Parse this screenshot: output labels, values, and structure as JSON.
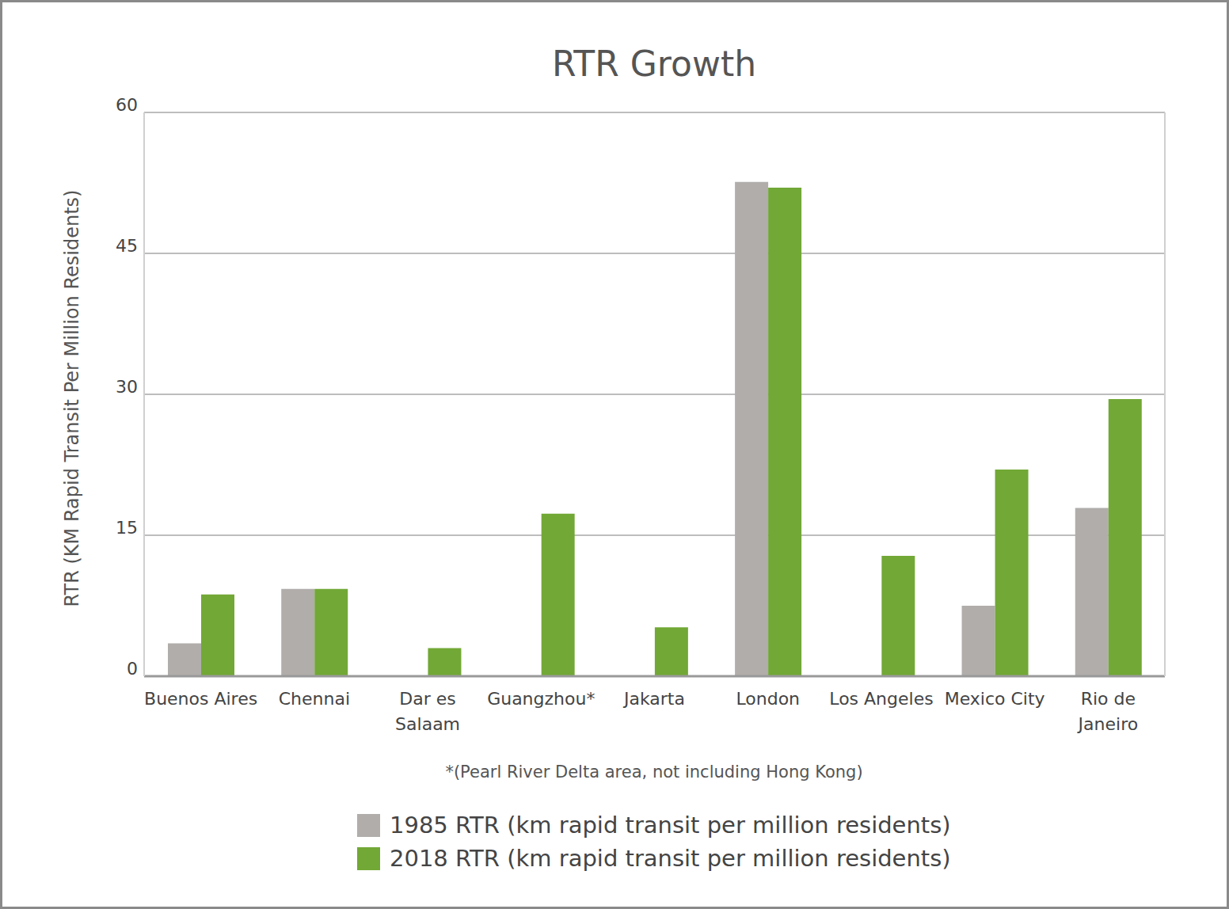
{
  "chart_data": {
    "type": "bar",
    "title": "RTR Growth",
    "y_label": "RTR (KM Rapid Transit Per Million Residents)",
    "annotation": "*(Pearl River Delta area, not including Hong Kong)",
    "categories": [
      "Buenos Aires",
      "Chennai",
      "Dar es Salaam",
      "Guangzhou*",
      "Jakarta",
      "London",
      "Los Angeles",
      "Mexico City",
      "Rio de Janeiro"
    ],
    "series": [
      {
        "name": "1985 RTR (km rapid transit per million residents)",
        "color": "#b0adab",
        "values": [
          3.5,
          9.3,
          null,
          null,
          null,
          52.6,
          null,
          7.5,
          17.9
        ]
      },
      {
        "name": "2018 RTR (km rapid transit per million residents)",
        "color": "#72a836",
        "values": [
          8.7,
          9.3,
          3.0,
          17.3,
          5.2,
          52.0,
          12.8,
          22.0,
          29.5
        ]
      }
    ],
    "ylim": [
      0,
      60
    ],
    "yticks": [
      0,
      15,
      30,
      45,
      60
    ],
    "grid": true,
    "legend": "bottom"
  }
}
